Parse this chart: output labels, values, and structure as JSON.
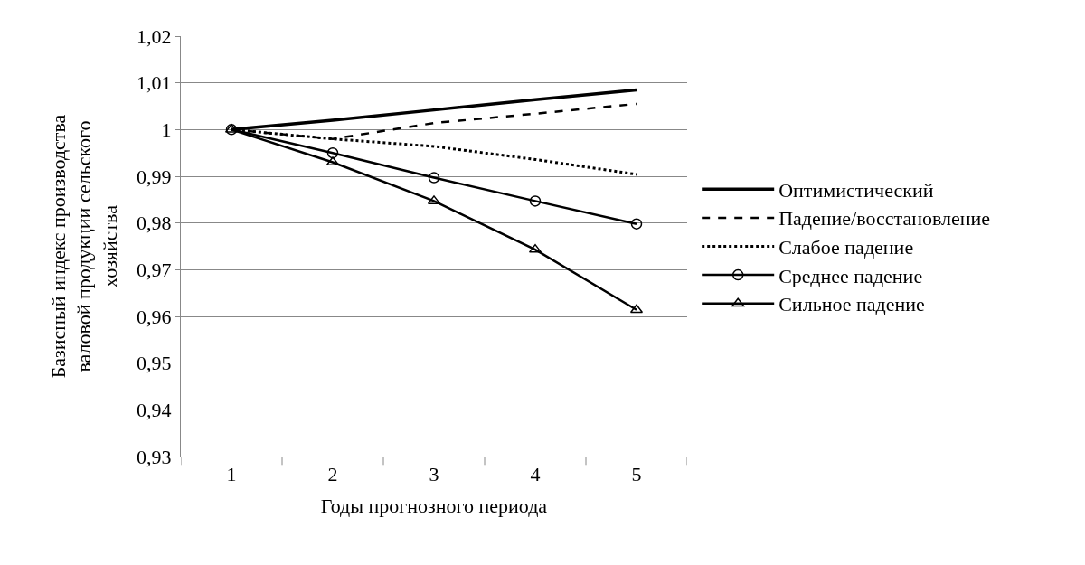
{
  "chart_data": {
    "type": "line",
    "xlabel": "Годы прогнозного периода",
    "ylabel": "Базисный индекс производства валовой продукции сельского хозяйства",
    "categories": [
      "1",
      "2",
      "3",
      "4",
      "5"
    ],
    "series": [
      {
        "name": "Оптимистический",
        "color": "#000000",
        "line_style": "solid",
        "marker": "none",
        "values": [
          1,
          1.002,
          1.0042,
          1.0064,
          1.0085
        ]
      },
      {
        "name": "Падение/восстановление",
        "color": "#000000",
        "line_style": "dashed",
        "marker": "none",
        "values": [
          1,
          0.998,
          1.0014,
          1.0034,
          1.0055
        ]
      },
      {
        "name": "Слабое падение",
        "color": "#000000",
        "line_style": "dotted",
        "marker": "none",
        "values": [
          1,
          0.998,
          0.9964,
          0.9936,
          0.9904
        ]
      },
      {
        "name": "Среднее падение",
        "color": "#000000",
        "line_style": "solid",
        "marker": "circle",
        "values": [
          1,
          0.995,
          0.9897,
          0.9847,
          0.9798
        ]
      },
      {
        "name": "Сильное падение",
        "color": "#000000",
        "line_style": "solid",
        "marker": "triangle",
        "values": [
          1,
          0.993,
          0.9847,
          0.9743,
          0.9614
        ]
      }
    ],
    "ylim": [
      0.93,
      1.02
    ],
    "yticks": [
      {
        "value": 0.93,
        "label": "0,93"
      },
      {
        "value": 0.94,
        "label": "0,94"
      },
      {
        "value": 0.95,
        "label": "0,95"
      },
      {
        "value": 0.96,
        "label": "0,96"
      },
      {
        "value": 0.97,
        "label": "0,97"
      },
      {
        "value": 0.98,
        "label": "0,98"
      },
      {
        "value": 0.99,
        "label": "0,99"
      },
      1,
      {
        "value": 1.01,
        "label": "1,01"
      },
      {
        "value": 1.02,
        "label": "1,02"
      }
    ],
    "grid": "y",
    "legend": "right"
  }
}
